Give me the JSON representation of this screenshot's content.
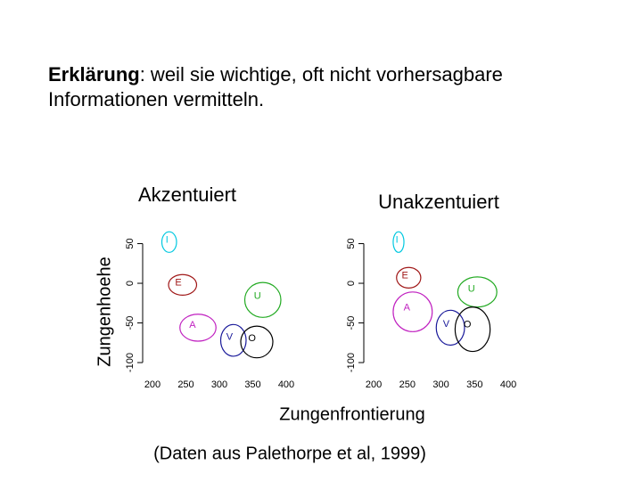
{
  "header": {
    "bold": "Erklärung",
    "text": ": weil sie wichtige, oft nicht vorhersagbare Informationen vermitteln."
  },
  "ylabel": "Zungenhoehe",
  "xlabel": "Zungenfrontierung",
  "source": "(Daten aus Palethorpe et al, 1999)",
  "chart_data": [
    {
      "type": "ellipse",
      "title": "Akzentuiert",
      "xlim": [
        190,
        410
      ],
      "ylim": [
        -105,
        58
      ],
      "xticks": [
        200,
        250,
        300,
        350,
        400
      ],
      "yticks": [
        -100,
        -50,
        0,
        50
      ],
      "points": [
        {
          "label": "I",
          "color": "#00c8e0",
          "x": 225,
          "y": 52,
          "rx": 11,
          "ry": 13
        },
        {
          "label": "E",
          "color": "#a01818",
          "x": 245,
          "y": -2,
          "rx": 21,
          "ry": 13
        },
        {
          "label": "U",
          "color": "#22aa22",
          "x": 365,
          "y": -21,
          "rx": 27,
          "ry": 22
        },
        {
          "label": "A",
          "color": "#c020c0",
          "x": 268,
          "y": -56,
          "rx": 27,
          "ry": 17
        },
        {
          "label": "V",
          "color": "#1a1a9a",
          "x": 321,
          "y": -72,
          "rx": 19,
          "ry": 20
        },
        {
          "label": "O",
          "color": "#000000",
          "x": 356,
          "y": -74,
          "rx": 24,
          "ry": 20
        }
      ]
    },
    {
      "type": "ellipse",
      "title": "Unakzentuiert",
      "xlim": [
        190,
        410
      ],
      "ylim": [
        -105,
        58
      ],
      "xticks": [
        200,
        250,
        300,
        350,
        400
      ],
      "yticks": [
        -100,
        -50,
        0,
        50
      ],
      "points": [
        {
          "label": "I",
          "color": "#00c8e0",
          "x": 237,
          "y": 52,
          "rx": 8,
          "ry": 13
        },
        {
          "label": "E",
          "color": "#a01818",
          "x": 252,
          "y": 7,
          "rx": 18,
          "ry": 13
        },
        {
          "label": "U",
          "color": "#22aa22",
          "x": 354,
          "y": -11,
          "rx": 29,
          "ry": 19
        },
        {
          "label": "A",
          "color": "#c020c0",
          "x": 258,
          "y": -36,
          "rx": 29,
          "ry": 25
        },
        {
          "label": "V",
          "color": "#1a1a9a",
          "x": 314,
          "y": -56,
          "rx": 21,
          "ry": 22
        },
        {
          "label": "O",
          "color": "#000000",
          "x": 347,
          "y": -58,
          "rx": 26,
          "ry": 28
        }
      ]
    }
  ]
}
